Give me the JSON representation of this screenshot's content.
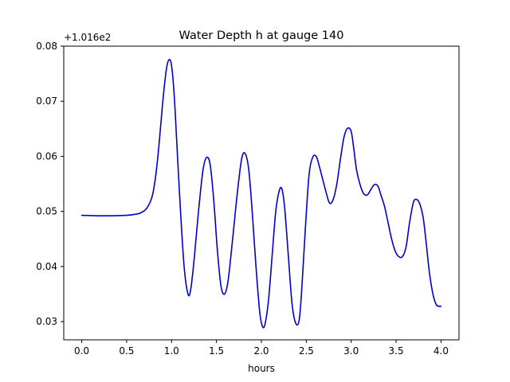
{
  "chart_data": {
    "type": "line",
    "title": "Water Depth h at gauge 140",
    "xlabel": "hours",
    "ylabel": "",
    "offset_label": "+1.016e2",
    "xlim": [
      -0.2,
      4.2
    ],
    "ylim": [
      0.0267,
      0.08
    ],
    "xticks": [
      {
        "value": 0.0,
        "label": "0.0"
      },
      {
        "value": 0.5,
        "label": "0.5"
      },
      {
        "value": 1.0,
        "label": "1.0"
      },
      {
        "value": 1.5,
        "label": "1.5"
      },
      {
        "value": 2.0,
        "label": "2.0"
      },
      {
        "value": 2.5,
        "label": "2.5"
      },
      {
        "value": 3.0,
        "label": "3.0"
      },
      {
        "value": 3.5,
        "label": "3.5"
      },
      {
        "value": 4.0,
        "label": "4.0"
      }
    ],
    "yticks": [
      {
        "value": 0.03,
        "label": "0.03"
      },
      {
        "value": 0.04,
        "label": "0.04"
      },
      {
        "value": 0.05,
        "label": "0.05"
      },
      {
        "value": 0.06,
        "label": "0.06"
      },
      {
        "value": 0.07,
        "label": "0.07"
      },
      {
        "value": 0.08,
        "label": "0.08"
      }
    ],
    "grid": false,
    "legend": "none",
    "series": [
      {
        "color": "#0000cc",
        "x": [
          0.0,
          0.25,
          0.5,
          0.6,
          0.65,
          0.72,
          0.78,
          0.82,
          0.86,
          0.9,
          0.94,
          0.97,
          1.0,
          1.03,
          1.06,
          1.1,
          1.14,
          1.18,
          1.21,
          1.25,
          1.3,
          1.35,
          1.39,
          1.43,
          1.47,
          1.51,
          1.55,
          1.59,
          1.63,
          1.68,
          1.73,
          1.78,
          1.82,
          1.86,
          1.9,
          1.94,
          1.98,
          2.01,
          2.04,
          2.08,
          2.12,
          2.16,
          2.2,
          2.23,
          2.26,
          2.3,
          2.34,
          2.38,
          2.42,
          2.45,
          2.49,
          2.53,
          2.57,
          2.61,
          2.64,
          2.68,
          2.72,
          2.76,
          2.8,
          2.84,
          2.88,
          2.92,
          2.96,
          3.0,
          3.03,
          3.06,
          3.1,
          3.14,
          3.18,
          3.22,
          3.26,
          3.3,
          3.33,
          3.37,
          3.41,
          3.45,
          3.49,
          3.53,
          3.57,
          3.61,
          3.65,
          3.69,
          3.72,
          3.76,
          3.8,
          3.83,
          3.87,
          3.91,
          3.95,
          4.0
        ],
        "y": [
          0.0493,
          0.0492,
          0.0493,
          0.0495,
          0.0497,
          0.0505,
          0.0525,
          0.056,
          0.062,
          0.0695,
          0.0755,
          0.0775,
          0.0765,
          0.071,
          0.062,
          0.05,
          0.04,
          0.0352,
          0.0355,
          0.041,
          0.05,
          0.0575,
          0.0598,
          0.0585,
          0.052,
          0.043,
          0.0365,
          0.035,
          0.0375,
          0.045,
          0.053,
          0.0595,
          0.0605,
          0.0575,
          0.0495,
          0.04,
          0.032,
          0.0292,
          0.0295,
          0.034,
          0.042,
          0.05,
          0.0538,
          0.054,
          0.0505,
          0.042,
          0.0335,
          0.0298,
          0.0302,
          0.036,
          0.047,
          0.0565,
          0.0598,
          0.06,
          0.0585,
          0.056,
          0.0535,
          0.0515,
          0.0522,
          0.055,
          0.0595,
          0.0635,
          0.0651,
          0.0645,
          0.0612,
          0.0575,
          0.0548,
          0.0532,
          0.053,
          0.054,
          0.0549,
          0.0545,
          0.053,
          0.051,
          0.048,
          0.045,
          0.0428,
          0.0418,
          0.0418,
          0.0435,
          0.048,
          0.0515,
          0.0522,
          0.0515,
          0.049,
          0.045,
          0.039,
          0.035,
          0.033,
          0.0328
        ]
      }
    ]
  }
}
